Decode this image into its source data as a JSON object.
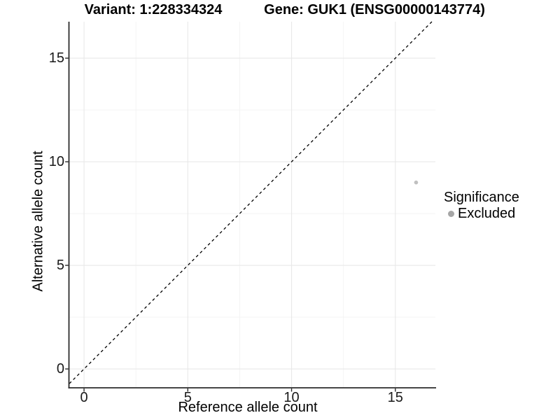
{
  "titles": {
    "variant": "Variant: 1:228334324",
    "gene": "Gene: GUK1 (ENSG00000143774)"
  },
  "legend": {
    "title": "Significance",
    "items": [
      {
        "label": "Excluded",
        "color": "#a6a6a6"
      }
    ]
  },
  "chart_data": {
    "type": "scatter",
    "title_left": "Variant: 1:228334324",
    "title_right": "Gene: GUK1 (ENSG00000143774)",
    "xlabel": "Reference allele count",
    "ylabel": "Alternative allele count",
    "xlim": [
      -0.71,
      16.93
    ],
    "ylim": [
      -0.91,
      16.76
    ],
    "x_ticks": [
      0,
      5,
      10,
      15
    ],
    "y_ticks": [
      0,
      5,
      10,
      15
    ],
    "x_minor_ticks": [
      2.5,
      7.5,
      12.5
    ],
    "y_minor_ticks": [
      2.5,
      7.5,
      12.5
    ],
    "grid": true,
    "legend_position": "right",
    "legend_title": "Significance",
    "series": [
      {
        "name": "Excluded",
        "color": "#c0c0c0",
        "point_radius": 2.8,
        "points": [
          {
            "x": 16,
            "y": 9
          }
        ]
      }
    ],
    "reference_line": {
      "type": "identity",
      "equation": "y = x",
      "style": "dashed",
      "color": "#000000"
    }
  },
  "colors": {
    "background": "#ffffff",
    "grid_major": "#e8e8e8",
    "grid_minor": "#f4f4f4",
    "axis_line": "#2b2b2b",
    "tick_mark": "#2b2b2b",
    "tick_text": "#1a1a1a",
    "identity_line": "#000000"
  }
}
